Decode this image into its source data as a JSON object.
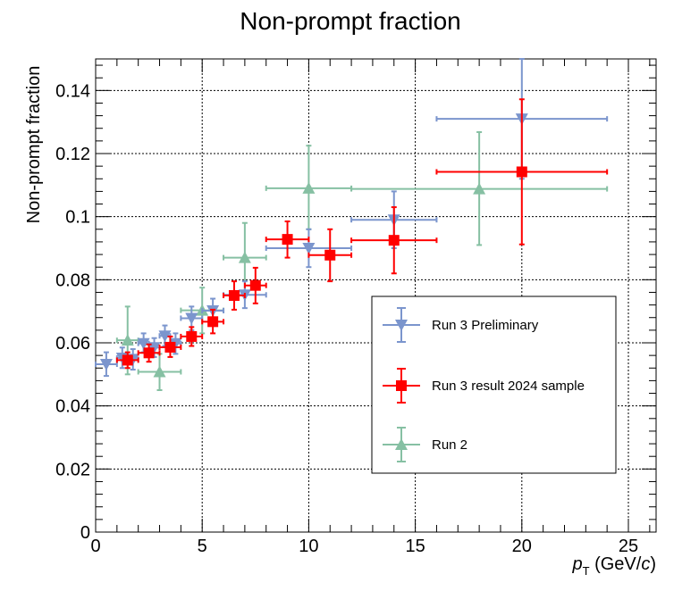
{
  "chart_data": {
    "type": "scatter",
    "title": "Non-prompt fraction",
    "xlabel": {
      "p": "p",
      "sub": "T",
      "unit": " (GeV/",
      "c": "c",
      "close": ")"
    },
    "ylabel": "Non-prompt fraction",
    "xlim": [
      0,
      26.3
    ],
    "ylim": [
      0,
      0.15
    ],
    "xticks": [
      0,
      5,
      10,
      15,
      20,
      25
    ],
    "xtick_labels": [
      "0",
      "5",
      "10",
      "15",
      "20",
      "25"
    ],
    "yticks": [
      0,
      0.02,
      0.04,
      0.06,
      0.08,
      0.1,
      0.12,
      0.14
    ],
    "ytick_labels": [
      "0",
      "0.02",
      "0.04",
      "0.06",
      "0.08",
      "0.1",
      "0.12",
      "0.14"
    ],
    "grid": true,
    "legend_position": "lower-right",
    "series": [
      {
        "name": "Run 3 Preliminary",
        "color": "#7b95cd",
        "marker": "triangle-down",
        "points": [
          {
            "x": 0.5,
            "xlo": 0,
            "xhi": 1,
            "y": 0.0532,
            "ylo": 0.0495,
            "yhi": 0.057
          },
          {
            "x": 1.25,
            "xlo": 1,
            "xhi": 1.5,
            "y": 0.0552,
            "ylo": 0.052,
            "yhi": 0.0585
          },
          {
            "x": 1.75,
            "xlo": 1.5,
            "xhi": 2,
            "y": 0.0548,
            "ylo": 0.0515,
            "yhi": 0.058
          },
          {
            "x": 2.25,
            "xlo": 2,
            "xhi": 2.5,
            "y": 0.0598,
            "ylo": 0.057,
            "yhi": 0.063
          },
          {
            "x": 2.75,
            "xlo": 2.5,
            "xhi": 3,
            "y": 0.0585,
            "ylo": 0.0555,
            "yhi": 0.0615
          },
          {
            "x": 3.25,
            "xlo": 3,
            "xhi": 3.5,
            "y": 0.0622,
            "ylo": 0.059,
            "yhi": 0.0655
          },
          {
            "x": 3.75,
            "xlo": 3.5,
            "xhi": 4,
            "y": 0.0598,
            "ylo": 0.0565,
            "yhi": 0.063
          },
          {
            "x": 4.5,
            "xlo": 4,
            "xhi": 5,
            "y": 0.0678,
            "ylo": 0.064,
            "yhi": 0.0715
          },
          {
            "x": 5.5,
            "xlo": 5,
            "xhi": 6,
            "y": 0.0702,
            "ylo": 0.0665,
            "yhi": 0.074
          },
          {
            "x": 7,
            "xlo": 6,
            "xhi": 8,
            "y": 0.0752,
            "ylo": 0.071,
            "yhi": 0.0795
          },
          {
            "x": 10,
            "xlo": 8,
            "xhi": 12,
            "y": 0.09,
            "ylo": 0.084,
            "yhi": 0.096
          },
          {
            "x": 14,
            "xlo": 12,
            "xhi": 16,
            "y": 0.099,
            "ylo": 0.09,
            "yhi": 0.108
          },
          {
            "x": 20,
            "xlo": 16,
            "xhi": 24,
            "y": 0.131,
            "ylo": 0.112,
            "yhi": 0.15
          }
        ]
      },
      {
        "name": "Run 3 result 2024 sample",
        "color": "#ff0000",
        "marker": "square",
        "points": [
          {
            "x": 1.5,
            "xlo": 1,
            "xhi": 2,
            "y": 0.0545,
            "ylo": 0.052,
            "yhi": 0.057
          },
          {
            "x": 2.5,
            "xlo": 2,
            "xhi": 3,
            "y": 0.0568,
            "ylo": 0.054,
            "yhi": 0.0595
          },
          {
            "x": 3.5,
            "xlo": 3,
            "xhi": 4,
            "y": 0.0586,
            "ylo": 0.0555,
            "yhi": 0.062
          },
          {
            "x": 4.5,
            "xlo": 4,
            "xhi": 5,
            "y": 0.062,
            "ylo": 0.059,
            "yhi": 0.065
          },
          {
            "x": 5.5,
            "xlo": 5,
            "xhi": 6,
            "y": 0.0667,
            "ylo": 0.063,
            "yhi": 0.0705
          },
          {
            "x": 6.5,
            "xlo": 6,
            "xhi": 7,
            "y": 0.075,
            "ylo": 0.0705,
            "yhi": 0.0795
          },
          {
            "x": 7.5,
            "xlo": 7,
            "xhi": 8,
            "y": 0.0782,
            "ylo": 0.0725,
            "yhi": 0.0838
          },
          {
            "x": 9,
            "xlo": 8,
            "xhi": 10,
            "y": 0.0928,
            "ylo": 0.087,
            "yhi": 0.0985
          },
          {
            "x": 11,
            "xlo": 10,
            "xhi": 12,
            "y": 0.0878,
            "ylo": 0.0795,
            "yhi": 0.096
          },
          {
            "x": 14,
            "xlo": 12,
            "xhi": 16,
            "y": 0.0925,
            "ylo": 0.082,
            "yhi": 0.103
          },
          {
            "x": 20,
            "xlo": 16,
            "xhi": 24,
            "y": 0.1142,
            "ylo": 0.0912,
            "yhi": 0.1372
          }
        ]
      },
      {
        "name": "Run 2",
        "color": "#86c0a3",
        "marker": "triangle-up",
        "points": [
          {
            "x": 1.5,
            "xlo": 1,
            "xhi": 2,
            "y": 0.0608,
            "ylo": 0.05,
            "yhi": 0.0715
          },
          {
            "x": 3,
            "xlo": 2,
            "xhi": 4,
            "y": 0.0508,
            "ylo": 0.045,
            "yhi": 0.0565
          },
          {
            "x": 5,
            "xlo": 4,
            "xhi": 6,
            "y": 0.0703,
            "ylo": 0.063,
            "yhi": 0.0775
          },
          {
            "x": 7,
            "xlo": 6,
            "xhi": 8,
            "y": 0.087,
            "ylo": 0.0765,
            "yhi": 0.098
          },
          {
            "x": 10,
            "xlo": 8,
            "xhi": 12,
            "y": 0.109,
            "ylo": 0.096,
            "yhi": 0.1225
          },
          {
            "x": 18,
            "xlo": 12,
            "xhi": 24,
            "y": 0.1088,
            "ylo": 0.091,
            "yhi": 0.1268
          }
        ]
      }
    ]
  }
}
